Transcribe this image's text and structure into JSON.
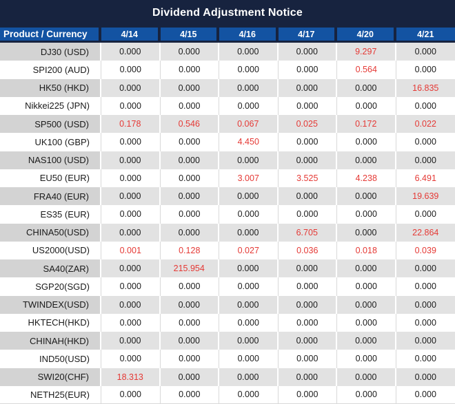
{
  "title": "Dividend Adjustment Notice",
  "table": {
    "product_header": "Product / Currency",
    "date_columns": [
      "4/14",
      "4/15",
      "4/16",
      "4/17",
      "4/20",
      "4/21"
    ],
    "rows": [
      {
        "product": "DJ30 (USD)",
        "values": [
          "0.000",
          "0.000",
          "0.000",
          "0.000",
          "9.297",
          "0.000"
        ]
      },
      {
        "product": "SPI200 (AUD)",
        "values": [
          "0.000",
          "0.000",
          "0.000",
          "0.000",
          "0.564",
          "0.000"
        ]
      },
      {
        "product": "HK50 (HKD)",
        "values": [
          "0.000",
          "0.000",
          "0.000",
          "0.000",
          "0.000",
          "16.835"
        ]
      },
      {
        "product": "Nikkei225 (JPN)",
        "values": [
          "0.000",
          "0.000",
          "0.000",
          "0.000",
          "0.000",
          "0.000"
        ]
      },
      {
        "product": "SP500 (USD)",
        "values": [
          "0.178",
          "0.546",
          "0.067",
          "0.025",
          "0.172",
          "0.022"
        ]
      },
      {
        "product": "UK100 (GBP)",
        "values": [
          "0.000",
          "0.000",
          "4.450",
          "0.000",
          "0.000",
          "0.000"
        ]
      },
      {
        "product": "NAS100 (USD)",
        "values": [
          "0.000",
          "0.000",
          "0.000",
          "0.000",
          "0.000",
          "0.000"
        ]
      },
      {
        "product": "EU50 (EUR)",
        "values": [
          "0.000",
          "0.000",
          "3.007",
          "3.525",
          "4.238",
          "6.491"
        ]
      },
      {
        "product": "FRA40 (EUR)",
        "values": [
          "0.000",
          "0.000",
          "0.000",
          "0.000",
          "0.000",
          "19.639"
        ]
      },
      {
        "product": "ES35 (EUR)",
        "values": [
          "0.000",
          "0.000",
          "0.000",
          "0.000",
          "0.000",
          "0.000"
        ]
      },
      {
        "product": "CHINA50(USD)",
        "values": [
          "0.000",
          "0.000",
          "0.000",
          "6.705",
          "0.000",
          "22.864"
        ]
      },
      {
        "product": "US2000(USD)",
        "values": [
          "0.001",
          "0.128",
          "0.027",
          "0.036",
          "0.018",
          "0.039"
        ]
      },
      {
        "product": "SA40(ZAR)",
        "values": [
          "0.000",
          "215.954",
          "0.000",
          "0.000",
          "0.000",
          "0.000"
        ]
      },
      {
        "product": "SGP20(SGD)",
        "values": [
          "0.000",
          "0.000",
          "0.000",
          "0.000",
          "0.000",
          "0.000"
        ]
      },
      {
        "product": "TWINDEX(USD)",
        "values": [
          "0.000",
          "0.000",
          "0.000",
          "0.000",
          "0.000",
          "0.000"
        ]
      },
      {
        "product": "HKTECH(HKD)",
        "values": [
          "0.000",
          "0.000",
          "0.000",
          "0.000",
          "0.000",
          "0.000"
        ]
      },
      {
        "product": "CHINAH(HKD)",
        "values": [
          "0.000",
          "0.000",
          "0.000",
          "0.000",
          "0.000",
          "0.000"
        ]
      },
      {
        "product": "IND50(USD)",
        "values": [
          "0.000",
          "0.000",
          "0.000",
          "0.000",
          "0.000",
          "0.000"
        ]
      },
      {
        "product": "SWI20(CHF)",
        "values": [
          "18.313",
          "0.000",
          "0.000",
          "0.000",
          "0.000",
          "0.000"
        ]
      },
      {
        "product": "NETH25(EUR)",
        "values": [
          "0.000",
          "0.000",
          "0.000",
          "0.000",
          "0.000",
          "0.000"
        ]
      }
    ]
  },
  "colors": {
    "title_bar_bg": "#17233f",
    "header_bg": "#1353a2",
    "header_text": "#ffffff",
    "stripe_product_bg": "#d3d3d3",
    "stripe_value_bg": "#e2e2e2",
    "plain_row_bg": "#ffffff",
    "value_text": "#1a1a1a",
    "nonzero_value_text": "#e53935"
  }
}
